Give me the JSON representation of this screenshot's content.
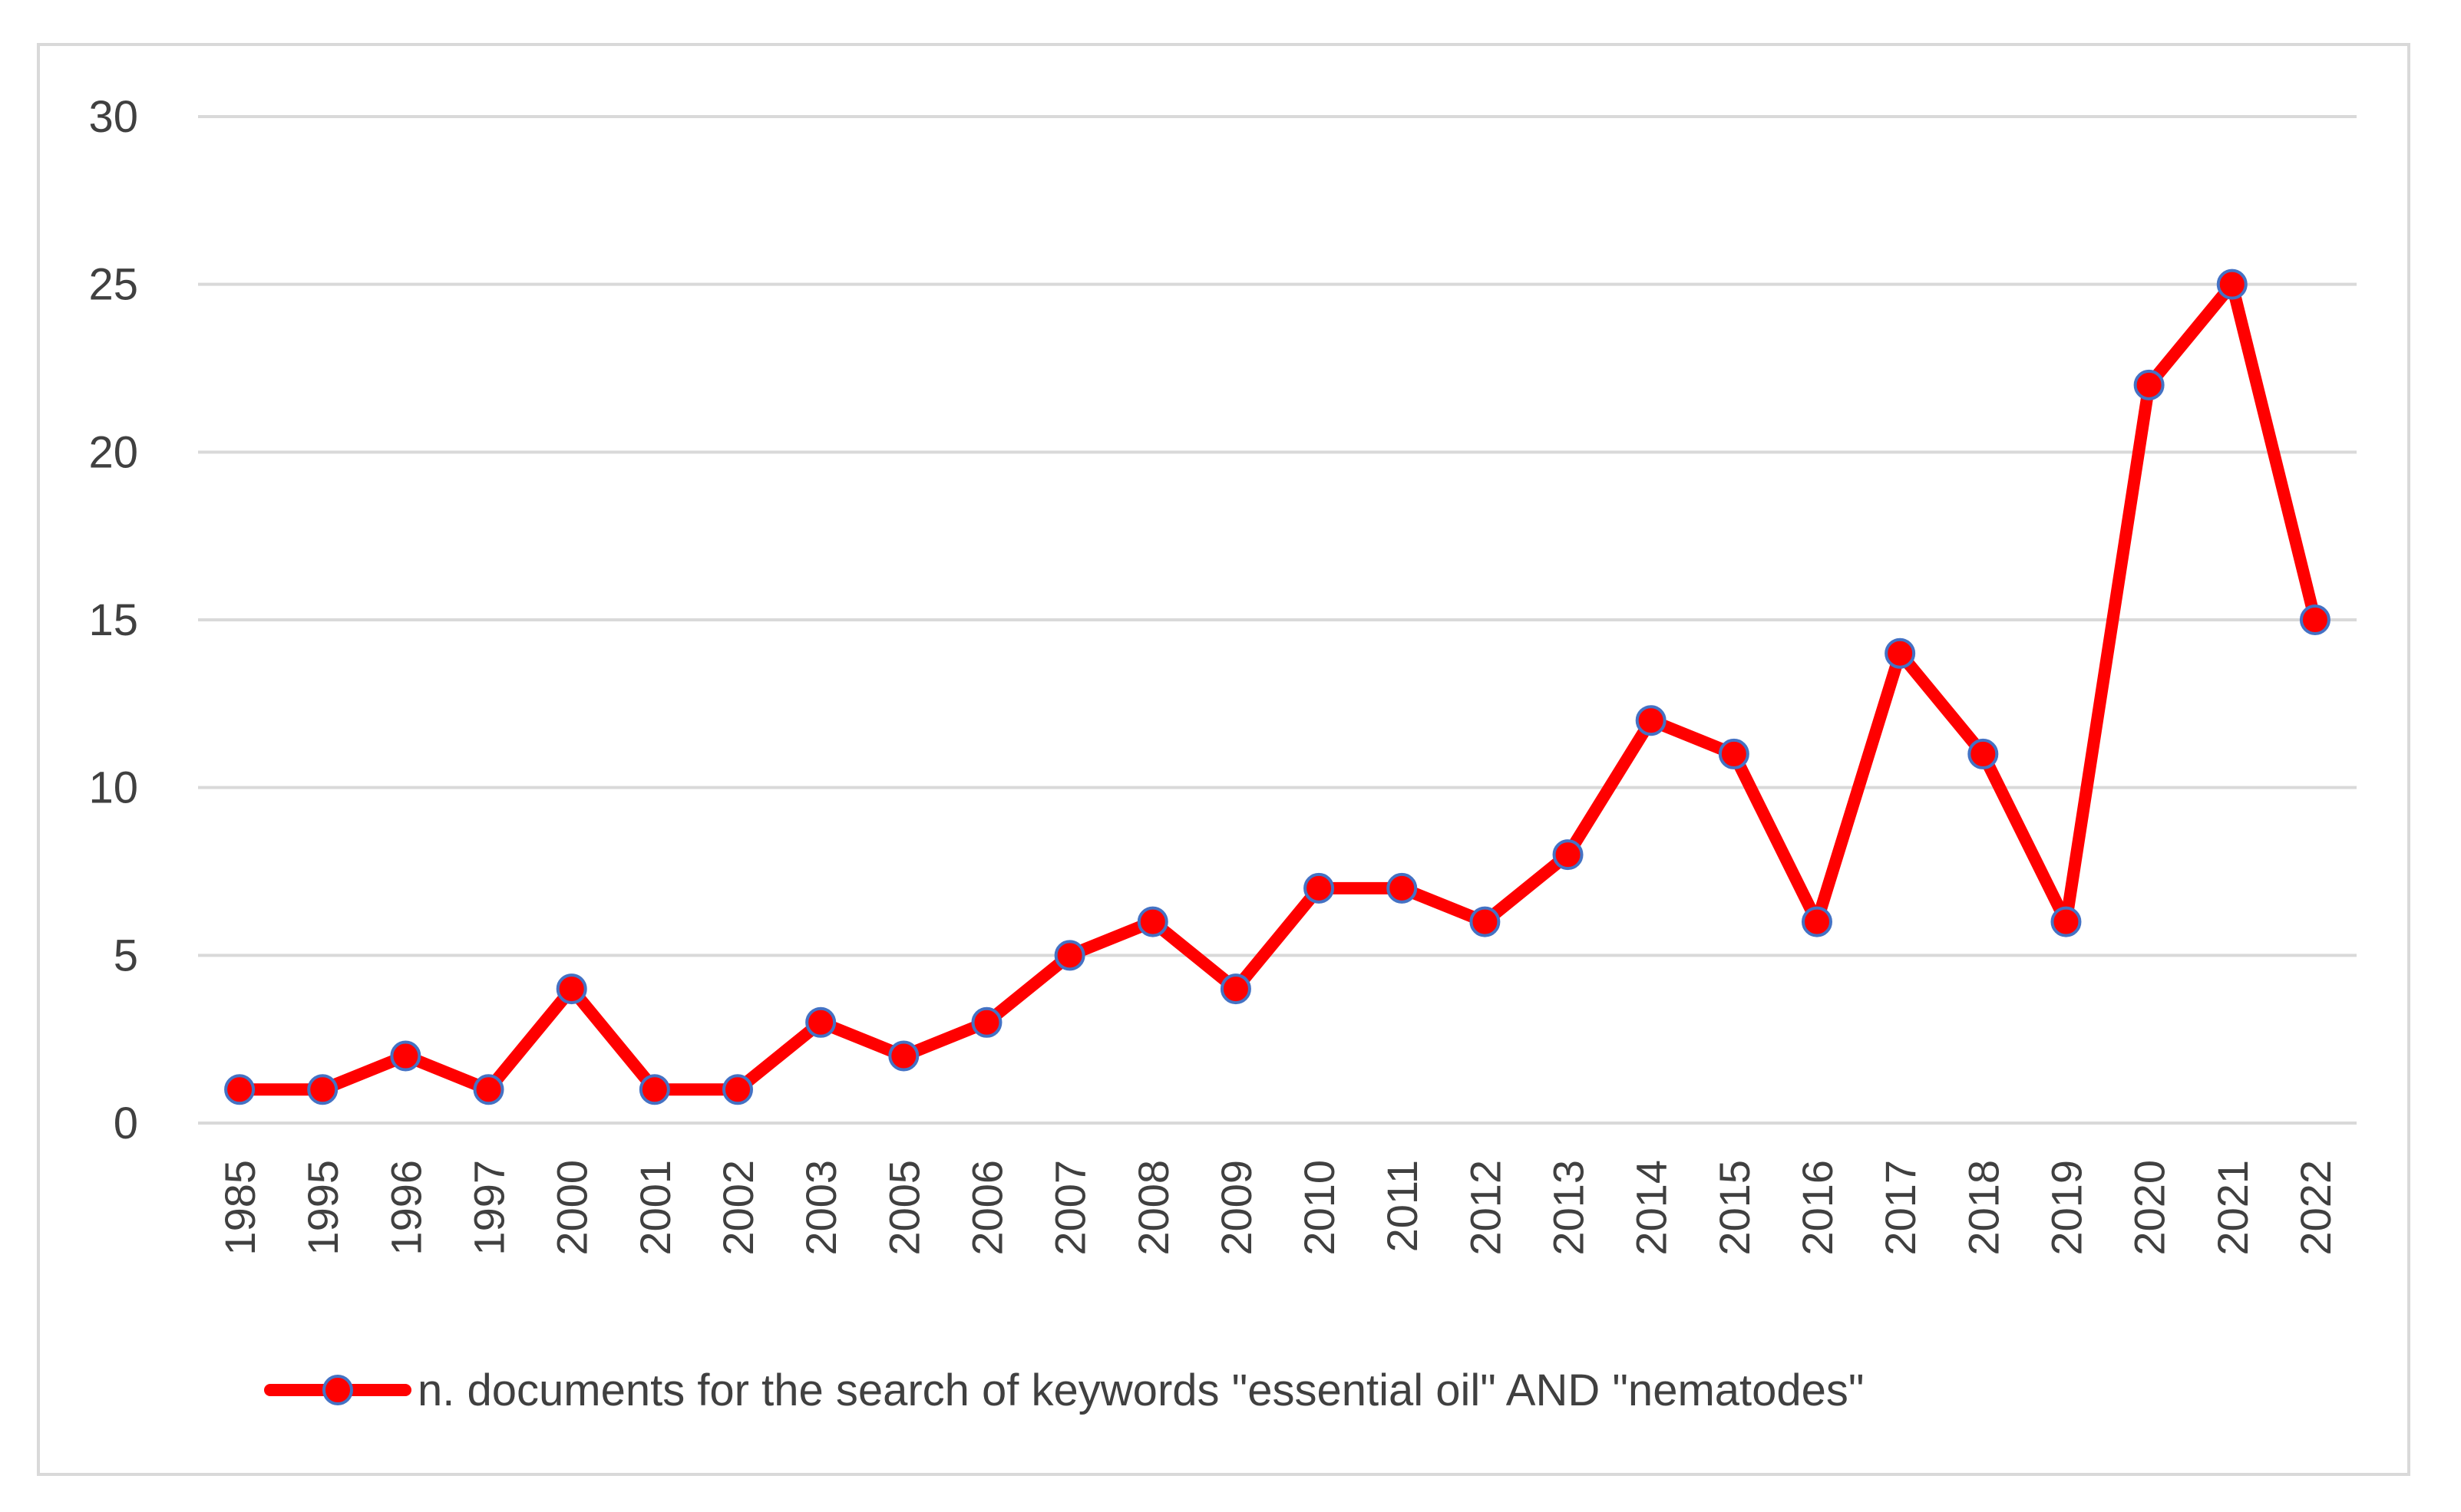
{
  "chart_data": {
    "type": "line",
    "title": "",
    "xlabel": "",
    "ylabel": "",
    "categories": [
      "1985",
      "1995",
      "1996",
      "1997",
      "2000",
      "2001",
      "2002",
      "2003",
      "2005",
      "2006",
      "2007",
      "2008",
      "2009",
      "2010",
      "2011",
      "2012",
      "2013",
      "2014",
      "2015",
      "2016",
      "2017",
      "2018",
      "2019",
      "2020",
      "2021",
      "2022"
    ],
    "series": [
      {
        "name": "n. documents for the search of keywords \"essential oil\" AND \"nematodes\"",
        "values": [
          1,
          1,
          2,
          1,
          4,
          1,
          1,
          3,
          2,
          3,
          5,
          6,
          4,
          7,
          7,
          6,
          8,
          12,
          11,
          6,
          14,
          11,
          6,
          22,
          25,
          15
        ]
      }
    ],
    "ylim": [
      0,
      30
    ],
    "yticks": [
      "0",
      "5",
      "10",
      "15",
      "20",
      "25",
      "30"
    ],
    "grid": true,
    "legend": "bottom",
    "colors": {
      "line": "#ff0000",
      "marker_fill": "#ff0000",
      "marker_edge": "#4472c4",
      "grid": "#d9d9d9",
      "text": "#404040",
      "frame": "#d9d9d9"
    }
  }
}
